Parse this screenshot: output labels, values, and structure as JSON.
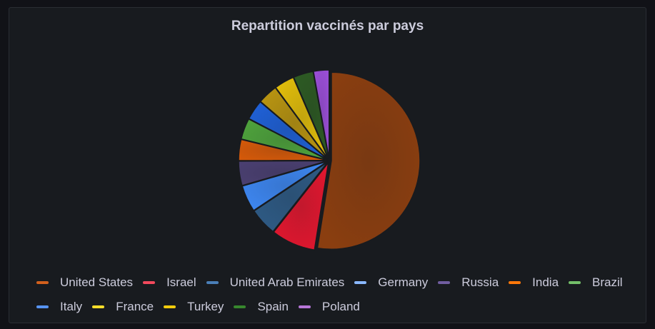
{
  "panel": {
    "title": "Repartition vaccinés par pays"
  },
  "chart_data": {
    "type": "pie",
    "title": "Repartition vaccinés par pays",
    "legend_position": "bottom",
    "series": [
      {
        "name": "United States",
        "value": 52.0,
        "color": "#8a3e10"
      },
      {
        "name": "Israel",
        "value": 8.0,
        "color": "#e0172f"
      },
      {
        "name": "United Arab Emirates",
        "value": 5.0,
        "color": "#2e5a84"
      },
      {
        "name": "Germany",
        "value": 4.8,
        "color": "#3d86f0"
      },
      {
        "name": "Russia",
        "value": 4.4,
        "color": "#4a3f70"
      },
      {
        "name": "India",
        "value": 3.8,
        "color": "#d3590a"
      },
      {
        "name": "Brazil",
        "value": 3.8,
        "color": "#4ea23c"
      },
      {
        "name": "Italy",
        "value": 3.6,
        "color": "#1f60d6"
      },
      {
        "name": "France",
        "value": 3.6,
        "color": "#b89411"
      },
      {
        "name": "Turkey",
        "value": 3.6,
        "color": "#e1bd0b"
      },
      {
        "name": "Spain",
        "value": 3.6,
        "color": "#2d5a23"
      },
      {
        "name": "Poland",
        "value": 2.8,
        "color": "#9a4ed6"
      }
    ],
    "legend_colors": [
      "#d2601d",
      "#f2495c",
      "#4a7fb8",
      "#8ab8ff",
      "#705da0",
      "#ff780a",
      "#73bf69",
      "#5794f2",
      "#fade2a",
      "#f2cc0c",
      "#37872d",
      "#b877d9"
    ]
  }
}
